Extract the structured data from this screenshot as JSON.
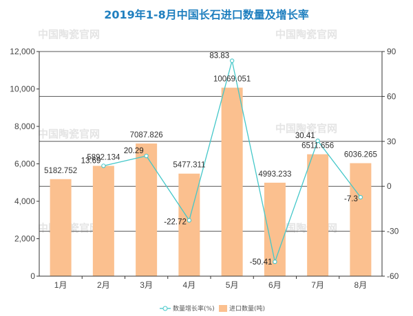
{
  "chart_data": {
    "type": "bar",
    "title": "2019年1-8月中国长石进口数量及增长率",
    "watermark": "中国陶瓷官网",
    "categories": [
      "1月",
      "2月",
      "3月",
      "4月",
      "5月",
      "6月",
      "7月",
      "8月"
    ],
    "series": [
      {
        "name": "进口数量(吨)",
        "kind": "bar",
        "axis": "left",
        "values": [
          5182.752,
          5892.134,
          7087.826,
          5477.311,
          10069.051,
          4993.233,
          6511.656,
          6036.265
        ],
        "labels": [
          "5182.752",
          "5892.134",
          "7087.826",
          "5477.311",
          "10069.051",
          "4993.233",
          "6511.656",
          "6036.265"
        ]
      },
      {
        "name": "数量增长率(%)",
        "kind": "line",
        "axis": "right",
        "values": [
          null,
          13.69,
          20.29,
          -22.72,
          83.83,
          -50.41,
          30.41,
          -7.3
        ],
        "labels": [
          "",
          "13.69",
          "20.29",
          "-22.72",
          "83.83",
          "-50.41",
          "30.41",
          "-7.3"
        ]
      }
    ],
    "left_axis": {
      "ylim": [
        0,
        12000
      ],
      "ticks": [
        "0",
        "2,000",
        "4,000",
        "6,000",
        "8,000",
        "10,000",
        "12,000"
      ]
    },
    "right_axis": {
      "ylim": [
        -60,
        90
      ],
      "ticks": [
        "-60",
        "-30",
        "0",
        "30",
        "60",
        "90"
      ]
    },
    "grid": true,
    "legend_position": "bottom-center",
    "colors": {
      "bar": "#fbc08f",
      "line": "#43c7c9",
      "title": "#1f7fbf",
      "axis": "#333333"
    }
  }
}
